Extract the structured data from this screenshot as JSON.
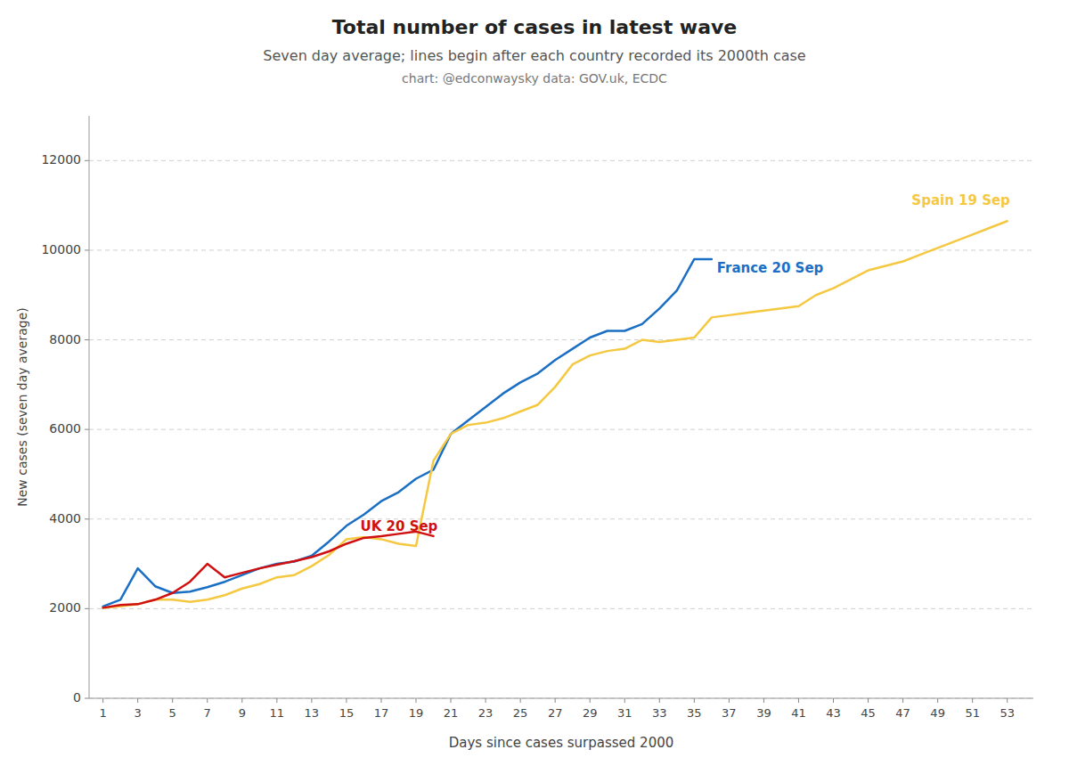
{
  "chart_data": {
    "type": "line",
    "title": "Total number of cases in latest wave",
    "subtitle": "Seven day average; lines begin after each country recorded its 2000th case",
    "caption": "chart: @edconwaysky data: GOV.uk, ECDC",
    "xlabel": "Days since cases surpassed 2000",
    "ylabel": "New cases (seven day average)",
    "xlim": [
      0.2,
      54.5
    ],
    "ylim": [
      0,
      13000
    ],
    "xticks": [
      1,
      3,
      5,
      7,
      9,
      11,
      13,
      15,
      17,
      19,
      21,
      23,
      25,
      27,
      29,
      31,
      33,
      35,
      37,
      39,
      41,
      43,
      45,
      47,
      49,
      51,
      53
    ],
    "yticks": [
      0,
      2000,
      4000,
      6000,
      8000,
      10000,
      12000
    ],
    "grid": "y",
    "series": [
      {
        "name": "France 20 Sep",
        "color": "#1a6fc4",
        "label_x": 36.3,
        "label_y": 9600,
        "x": [
          1,
          2,
          3,
          4,
          5,
          6,
          7,
          8,
          9,
          10,
          11,
          12,
          13,
          14,
          15,
          16,
          17,
          18,
          19,
          20,
          21,
          22,
          23,
          24,
          25,
          26,
          27,
          28,
          29,
          30,
          31,
          32,
          33,
          34,
          35,
          36
        ],
        "values": [
          2050,
          2200,
          2900,
          2500,
          2350,
          2380,
          2480,
          2600,
          2750,
          2900,
          3000,
          3050,
          3180,
          3500,
          3850,
          4100,
          4400,
          4600,
          4900,
          5100,
          5900,
          6200,
          6500,
          6800,
          7050,
          7250,
          7550,
          7800,
          8050,
          8200,
          8200,
          8350,
          8700,
          9100,
          9800,
          9800
        ]
      },
      {
        "name": "Spain 19 Sep",
        "color": "#f5c842",
        "label_x": 47.5,
        "label_y": 11100,
        "x": [
          1,
          2,
          3,
          4,
          5,
          6,
          7,
          8,
          9,
          10,
          11,
          12,
          13,
          14,
          15,
          16,
          17,
          18,
          19,
          20,
          21,
          22,
          23,
          24,
          25,
          26,
          27,
          28,
          29,
          30,
          31,
          32,
          33,
          34,
          35,
          36,
          37,
          38,
          39,
          40,
          41,
          42,
          43,
          44,
          45,
          46,
          47,
          48,
          49,
          50,
          51,
          52,
          53
        ],
        "values": [
          2020,
          2050,
          2100,
          2200,
          2200,
          2150,
          2200,
          2300,
          2450,
          2550,
          2700,
          2750,
          2950,
          3200,
          3550,
          3600,
          3550,
          3450,
          3400,
          5300,
          5900,
          6100,
          6150,
          6250,
          6400,
          6550,
          6950,
          7450,
          7650,
          7750,
          7800,
          8000,
          7950,
          8000,
          8050,
          8500,
          8550,
          8600,
          8650,
          8700,
          8750,
          9000,
          9150,
          9350,
          9550,
          9650,
          9750,
          9900,
          10050,
          10200,
          10350,
          10500,
          10650
        ]
      },
      {
        "name": "UK 20 Sep",
        "color": "#d01010",
        "label_x": 15.8,
        "label_y": 3820,
        "x": [
          1,
          2,
          3,
          4,
          5,
          6,
          7,
          8,
          9,
          10,
          11,
          12,
          13,
          14,
          15,
          16,
          17,
          18,
          19,
          20
        ],
        "values": [
          2020,
          2080,
          2100,
          2200,
          2350,
          2600,
          3000,
          2700,
          2800,
          2900,
          2980,
          3060,
          3150,
          3280,
          3450,
          3580,
          3620,
          3670,
          3720,
          3620
        ]
      }
    ]
  }
}
